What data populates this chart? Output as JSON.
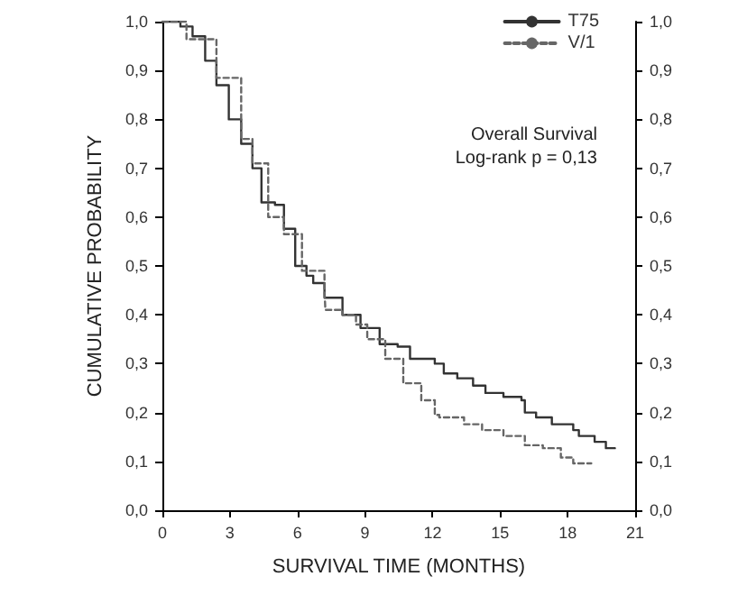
{
  "chart_data": {
    "type": "step",
    "xlabel": "SURVIVAL TIME (MONTHS)",
    "ylabel": "CUMULATIVE PROBABILITY",
    "annotations": [
      "Overall Survival",
      "Log-rank p = 0,13"
    ],
    "xlim": [
      0,
      21
    ],
    "xticks": [
      0,
      3,
      6,
      9,
      12,
      15,
      18,
      21
    ],
    "ylim": [
      0,
      1
    ],
    "yticks": [
      {
        "value": 0,
        "label": "0,0"
      },
      {
        "value": 0.1,
        "label": "0,1"
      },
      {
        "value": 0.2,
        "label": "0,2"
      },
      {
        "value": 0.3,
        "label": "0,3"
      },
      {
        "value": 0.4,
        "label": "0,4"
      },
      {
        "value": 0.5,
        "label": "0,5"
      },
      {
        "value": 0.6,
        "label": "0,6"
      },
      {
        "value": 0.7,
        "label": "0,7"
      },
      {
        "value": 0.8,
        "label": "0,8"
      },
      {
        "value": 0.9,
        "label": "0,9"
      },
      {
        "value": 1,
        "label": "1,0"
      }
    ],
    "y2lim": [
      0,
      1
    ],
    "y2ticks": [
      {
        "value": 0,
        "label": "0,0"
      },
      {
        "value": 0.1,
        "label": "0,1"
      },
      {
        "value": 0.2,
        "label": "0,2"
      },
      {
        "value": 0.3,
        "label": "0,3"
      },
      {
        "value": 0.4,
        "label": "0,4"
      },
      {
        "value": 0.5,
        "label": "0,5"
      },
      {
        "value": 0.6,
        "label": "0,6"
      },
      {
        "value": 0.7,
        "label": "0,7"
      },
      {
        "value": 0.8,
        "label": "0,8"
      },
      {
        "value": 0.9,
        "label": "0,9"
      },
      {
        "value": 1,
        "label": "1,0"
      }
    ],
    "grid": false,
    "legend": "top right",
    "marker": "none",
    "series": [
      {
        "name": "T75",
        "color": "#333333",
        "line_style": "solid",
        "x": [
          0,
          0.8,
          1.34,
          1.9,
          2.4,
          2.95,
          3.5,
          4.0,
          4.4,
          5.0,
          5.4,
          5.9,
          6.4,
          6.7,
          7.2,
          8.0,
          8.8,
          9.65,
          10.45,
          11.0,
          12.1,
          12.5,
          13.1,
          13.8,
          14.35,
          15.15,
          15.95,
          16.1,
          16.6,
          17.3,
          18.25,
          18.5,
          19.2,
          19.7,
          20.1
        ],
        "values": [
          1.0,
          0.99,
          0.97,
          0.92,
          0.87,
          0.8,
          0.75,
          0.7,
          0.63,
          0.625,
          0.576,
          0.5,
          0.48,
          0.465,
          0.435,
          0.4,
          0.373,
          0.34,
          0.335,
          0.31,
          0.3,
          0.28,
          0.27,
          0.255,
          0.24,
          0.232,
          0.225,
          0.2,
          0.19,
          0.176,
          0.164,
          0.152,
          0.14,
          0.127,
          0.127
        ]
      },
      {
        "name": "V/1",
        "color": "#666666",
        "line_style": "dashed",
        "x": [
          0,
          1.07,
          2.4,
          3.5,
          4.0,
          4.7,
          5.4,
          6.2,
          7.2,
          7.24,
          8.0,
          8.6,
          9.1,
          9.9,
          10.7,
          11.5,
          12.1,
          12.3,
          13.4,
          14.2,
          15.15,
          16.1,
          16.9,
          17.7,
          18.25,
          19.05
        ],
        "values": [
          1.0,
          0.964,
          0.885,
          0.76,
          0.71,
          0.6,
          0.565,
          0.49,
          0.45,
          0.41,
          0.4,
          0.38,
          0.35,
          0.31,
          0.26,
          0.225,
          0.195,
          0.19,
          0.176,
          0.164,
          0.152,
          0.133,
          0.127,
          0.108,
          0.096,
          0.096
        ]
      }
    ]
  }
}
